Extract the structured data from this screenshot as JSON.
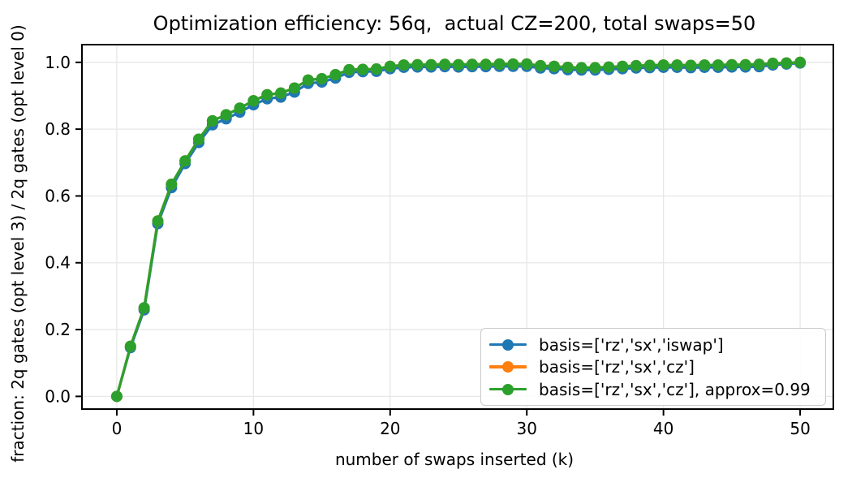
{
  "chart_data": {
    "type": "line",
    "title": "Optimization efficiency: 56q,  actual CZ=200, total swaps=50",
    "xlabel": "number of swaps inserted (k)",
    "ylabel": "fraction: 2q gates (opt level 3) / 2q gates (opt level 0)",
    "xlim": [
      -2.55,
      52.43
    ],
    "ylim": [
      -0.038,
      1.053
    ],
    "xticks": [
      0,
      10,
      20,
      30,
      40,
      50
    ],
    "xtick_labels": [
      "0",
      "10",
      "20",
      "30",
      "40",
      "50"
    ],
    "yticks": [
      0.0,
      0.2,
      0.4,
      0.6,
      0.8,
      1.0
    ],
    "ytick_labels": [
      "0.0",
      "0.2",
      "0.4",
      "0.6",
      "0.8",
      "1.0"
    ],
    "grid": true,
    "grid_color": "#e7e7e7",
    "axis_color": "#000000",
    "legend_position": "lower right",
    "x": [
      0,
      1,
      2,
      3,
      4,
      5,
      6,
      7,
      8,
      9,
      10,
      11,
      12,
      13,
      14,
      15,
      16,
      17,
      18,
      19,
      20,
      21,
      22,
      23,
      24,
      25,
      26,
      27,
      28,
      29,
      30,
      31,
      32,
      33,
      34,
      35,
      36,
      37,
      38,
      39,
      40,
      41,
      42,
      43,
      44,
      45,
      46,
      47,
      48,
      49,
      50
    ],
    "series": [
      {
        "name": "basis=['rz','sx','iswap']",
        "slug": "iswap",
        "color": "#1f77b4",
        "values": [
          0.0,
          0.146,
          0.259,
          0.517,
          0.625,
          0.697,
          0.76,
          0.813,
          0.831,
          0.851,
          0.873,
          0.891,
          0.896,
          0.911,
          0.937,
          0.941,
          0.953,
          0.97,
          0.972,
          0.973,
          0.981,
          0.985,
          0.986,
          0.986,
          0.987,
          0.986,
          0.987,
          0.987,
          0.988,
          0.988,
          0.988,
          0.983,
          0.981,
          0.978,
          0.977,
          0.977,
          0.979,
          0.981,
          0.983,
          0.984,
          0.985,
          0.985,
          0.984,
          0.985,
          0.985,
          0.986,
          0.986,
          0.987,
          0.992,
          0.995,
          0.998
        ]
      },
      {
        "name": "basis=['rz','sx','cz']",
        "slug": "cz",
        "color": "#ff7f0e",
        "values": [
          0.0,
          0.15,
          0.265,
          0.525,
          0.635,
          0.705,
          0.77,
          0.825,
          0.843,
          0.863,
          0.885,
          0.903,
          0.908,
          0.923,
          0.947,
          0.951,
          0.963,
          0.978,
          0.979,
          0.98,
          0.988,
          0.992,
          0.993,
          0.993,
          0.994,
          0.993,
          0.994,
          0.994,
          0.995,
          0.995,
          0.995,
          0.99,
          0.988,
          0.985,
          0.984,
          0.984,
          0.986,
          0.988,
          0.99,
          0.991,
          0.992,
          0.992,
          0.991,
          0.992,
          0.992,
          0.993,
          0.993,
          0.994,
          0.997,
          0.998,
          1.0
        ]
      },
      {
        "name": "basis=['rz','sx','cz'], approx=0.99",
        "slug": "cz-approx",
        "color": "#2ca02c",
        "values": [
          0.0,
          0.15,
          0.265,
          0.525,
          0.635,
          0.705,
          0.77,
          0.825,
          0.843,
          0.863,
          0.885,
          0.903,
          0.908,
          0.923,
          0.947,
          0.951,
          0.963,
          0.978,
          0.979,
          0.98,
          0.988,
          0.992,
          0.993,
          0.993,
          0.994,
          0.993,
          0.994,
          0.994,
          0.995,
          0.995,
          0.995,
          0.99,
          0.988,
          0.985,
          0.984,
          0.984,
          0.986,
          0.988,
          0.99,
          0.991,
          0.992,
          0.992,
          0.991,
          0.992,
          0.992,
          0.993,
          0.993,
          0.994,
          0.997,
          0.998,
          1.0
        ]
      }
    ]
  }
}
